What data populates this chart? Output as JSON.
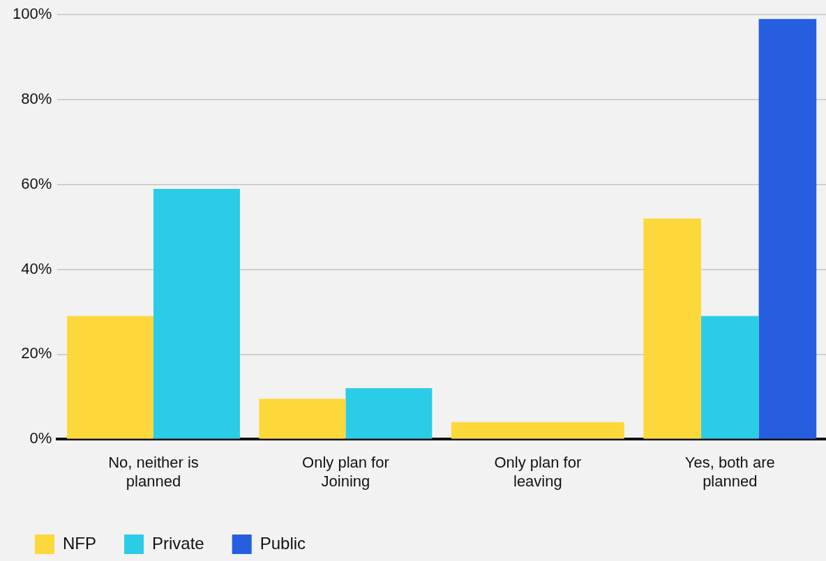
{
  "chart_data": {
    "type": "bar",
    "categories": [
      "No, neither is planned",
      "Only plan for Joining",
      "Only plan for leaving",
      "Yes, both are planned"
    ],
    "series": [
      {
        "name": "NFP",
        "color": "#fdd83b",
        "values": [
          29,
          9.5,
          4,
          52
        ]
      },
      {
        "name": "Private",
        "color": "#2bcce8",
        "values": [
          59,
          12,
          null,
          29
        ]
      },
      {
        "name": "Public",
        "color": "#255fdf",
        "values": [
          null,
          null,
          null,
          99
        ]
      }
    ],
    "ylim": [
      0,
      100
    ],
    "yticks": [
      {
        "value": 0,
        "label": "0%"
      },
      {
        "value": 20,
        "label": "20%"
      },
      {
        "value": 40,
        "label": "40%"
      },
      {
        "value": 60,
        "label": "60%"
      },
      {
        "value": 80,
        "label": "80%"
      },
      {
        "value": 100,
        "label": "100%"
      }
    ],
    "grid": "y",
    "legend": "bottom left"
  }
}
